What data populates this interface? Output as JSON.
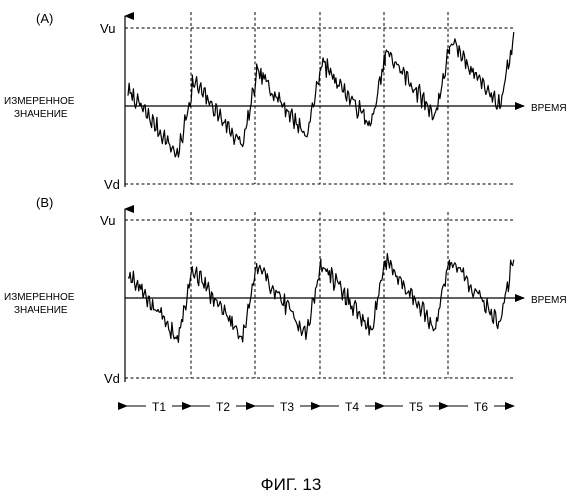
{
  "figure": {
    "caption": "ФИГ. 13",
    "panels": [
      {
        "id": "A",
        "label": "(A)",
        "upper_label": "Vu",
        "lower_label": "Vd",
        "y_label_line1": "ИЗМЕРЕННОЕ",
        "y_label_line2": "ЗНАЧЕНИЕ",
        "x_label": "ВРЕМЯ",
        "trend": "rising"
      },
      {
        "id": "B",
        "label": "(B)",
        "upper_label": "Vu",
        "lower_label": "Vd",
        "y_label_line1": "ИЗМЕРЕННОЕ",
        "y_label_line2": "ЗНАЧЕНИЕ",
        "x_label": "ВРЕМЯ",
        "trend": "flat",
        "periods": [
          "T1",
          "T2",
          "T3",
          "T4",
          "T5",
          "T6"
        ]
      }
    ]
  }
}
